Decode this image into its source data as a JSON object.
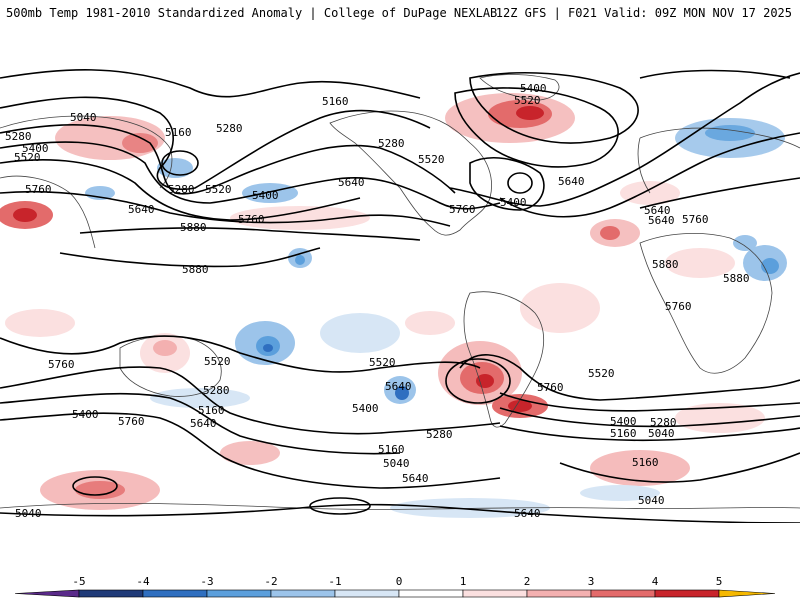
{
  "header": {
    "title_left": "500mb Temp 1981-2010 Standardized Anomaly | College of DuPage NEXLAB",
    "title_right": "12Z GFS | F021 Valid: 09Z MON NOV 17 2025"
  },
  "map": {
    "contour_labels": [
      {
        "text": "5040"
      },
      {
        "text": "5160"
      },
      {
        "text": "5280"
      },
      {
        "text": "5400"
      },
      {
        "text": "5520"
      },
      {
        "text": "5160"
      },
      {
        "text": "5280"
      },
      {
        "text": "5280"
      },
      {
        "text": "5400"
      },
      {
        "text": "5520"
      },
      {
        "text": "5640"
      },
      {
        "text": "5760"
      },
      {
        "text": "5640"
      },
      {
        "text": "5760"
      },
      {
        "text": "5880"
      },
      {
        "text": "5880"
      },
      {
        "text": "5400"
      },
      {
        "text": "5520"
      },
      {
        "text": "5280"
      },
      {
        "text": "5520"
      },
      {
        "text": "5640"
      },
      {
        "text": "5760"
      },
      {
        "text": "5400"
      },
      {
        "text": "5640"
      },
      {
        "text": "5640"
      },
      {
        "text": "5760"
      },
      {
        "text": "5880"
      },
      {
        "text": "5880"
      },
      {
        "text": "5760"
      },
      {
        "text": "5760"
      },
      {
        "text": "5520"
      },
      {
        "text": "5280"
      },
      {
        "text": "5160"
      },
      {
        "text": "5640"
      },
      {
        "text": "5400"
      },
      {
        "text": "5760"
      },
      {
        "text": "5520"
      },
      {
        "text": "5640"
      },
      {
        "text": "5400"
      },
      {
        "text": "5280"
      },
      {
        "text": "5160"
      },
      {
        "text": "5040"
      },
      {
        "text": "5640"
      },
      {
        "text": "5760"
      },
      {
        "text": "5520"
      },
      {
        "text": "5400"
      },
      {
        "text": "5280"
      },
      {
        "text": "5160"
      },
      {
        "text": "5040"
      },
      {
        "text": "5160"
      },
      {
        "text": "5040"
      },
      {
        "text": "5040"
      },
      {
        "text": "5160"
      },
      {
        "text": "5640"
      }
    ]
  },
  "colorbar": {
    "ticks": [
      "-5",
      "-4",
      "-3",
      "-2",
      "-1",
      "0",
      "1",
      "2",
      "3",
      "4",
      "5"
    ],
    "colors": [
      "#5a2a8a",
      "#1f3a78",
      "#2f6fc0",
      "#5b9fdc",
      "#9cc4ea",
      "#d7e6f5",
      "#ffffff",
      "#fbe0e0",
      "#f3b0b0",
      "#e36b6b",
      "#c8242b",
      "#8a0f18",
      "#f5b800"
    ]
  }
}
